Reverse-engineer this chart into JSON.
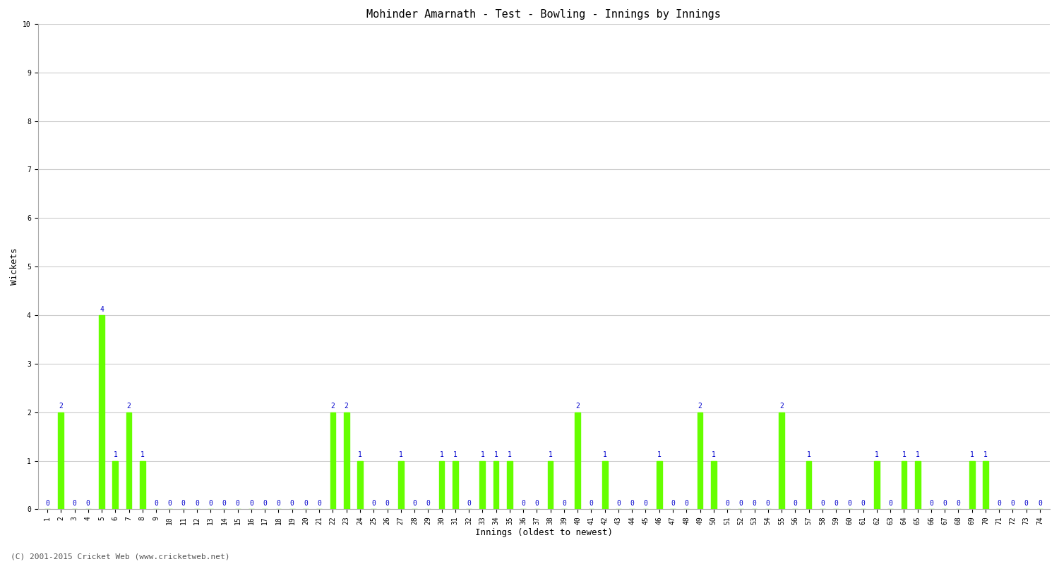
{
  "title": "Mohinder Amarnath - Test - Bowling - Innings by Innings",
  "xlabel": "Innings (oldest to newest)",
  "ylabel": "Wickets",
  "ylim": [
    0,
    10
  ],
  "yticks": [
    0,
    1,
    2,
    3,
    4,
    5,
    6,
    7,
    8,
    9,
    10
  ],
  "bar_color": "#66ff00",
  "bar_edge_color": "#66ff00",
  "label_color": "#0000cc",
  "background_color": "#ffffff",
  "grid_color": "#cccccc",
  "footnote": "(C) 2001-2015 Cricket Web (www.cricketweb.net)",
  "wickets": [
    0,
    2,
    0,
    0,
    4,
    1,
    2,
    1,
    0,
    0,
    0,
    0,
    0,
    0,
    0,
    0,
    0,
    0,
    0,
    0,
    0,
    2,
    2,
    1,
    0,
    0,
    1,
    0,
    0,
    1,
    1,
    0,
    1,
    1,
    1,
    0,
    0,
    1,
    0,
    2,
    0,
    1,
    0,
    0,
    0,
    1,
    0,
    0,
    2,
    1,
    0,
    0,
    0,
    0,
    2,
    0,
    1,
    0,
    0,
    0,
    0,
    1,
    0,
    1,
    1,
    0,
    0,
    0,
    1,
    1,
    0,
    0,
    0,
    0
  ],
  "innings": [
    1,
    2,
    3,
    4,
    5,
    6,
    7,
    8,
    9,
    10,
    11,
    12,
    13,
    14,
    15,
    16,
    17,
    18,
    19,
    20,
    21,
    22,
    23,
    24,
    25,
    26,
    27,
    28,
    29,
    30,
    31,
    32,
    33,
    34,
    35,
    36,
    37,
    38,
    39,
    40,
    41,
    42,
    43,
    44,
    45,
    46,
    47,
    48,
    49,
    50,
    51,
    52,
    53,
    54,
    55,
    56,
    57,
    58,
    59,
    60,
    61,
    62,
    63,
    64,
    65,
    66,
    67,
    68,
    69,
    70,
    71,
    72,
    73,
    74
  ],
  "bar_width": 0.4,
  "label_fontsize": 7,
  "tick_fontsize": 7,
  "title_fontsize": 11,
  "axis_label_fontsize": 9
}
